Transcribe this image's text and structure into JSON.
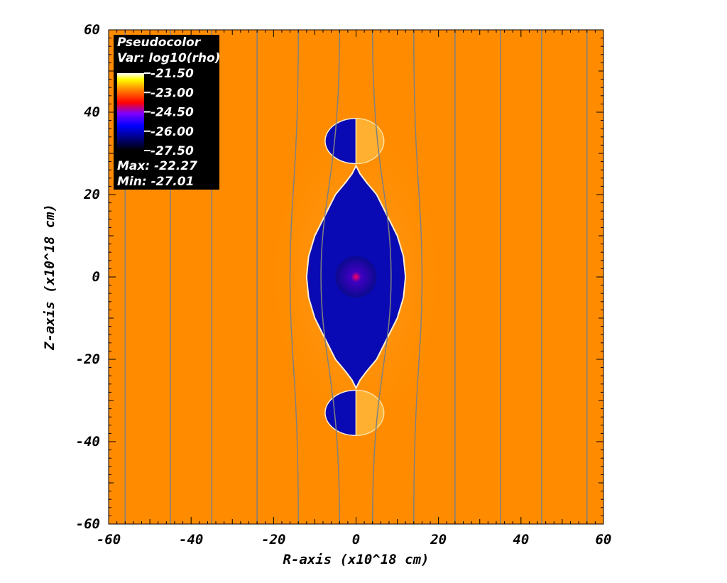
{
  "chart_data": {
    "type": "heatmap",
    "xlabel": "R-axis (x10^18 cm)",
    "ylabel": "Z-axis (x10^18 cm)",
    "xlim": [
      -60,
      60
    ],
    "ylim": [
      -60,
      60
    ],
    "x_ticks": [
      "-60",
      "-40",
      "-20",
      "0",
      "20",
      "40",
      "60"
    ],
    "y_ticks": [
      "-60",
      "-40",
      "-20",
      "0",
      "20",
      "40",
      "60"
    ],
    "grid": false,
    "legend": {
      "position": "top-left",
      "title": "Pseudocolor",
      "variable": "Var: log10(rho)",
      "levels": [
        "-21.50",
        "-23.00",
        "-24.50",
        "-26.00",
        "-27.50"
      ],
      "max_label": "Max: -22.27",
      "min_label": "Min: -27.01",
      "colormap": [
        "#ffffff",
        "#ffff00",
        "#ff8000",
        "#ff0000",
        "#8000ff",
        "#0000ff",
        "#000000"
      ]
    },
    "colors": {
      "ambient": "#ff8c00",
      "cavity": "#0a0ab4",
      "cavity_edge": "#fff0d0",
      "field_lines": "#808080"
    },
    "field_line_positions_r": [
      -56,
      -45,
      -35,
      -24,
      -14,
      -4,
      4,
      14,
      24,
      35,
      45,
      56
    ],
    "cavity_shape": {
      "r_half_width_at_z": [
        [
          0,
          12
        ],
        [
          5,
          11.5
        ],
        [
          10,
          10
        ],
        [
          15,
          7.5
        ],
        [
          20,
          5
        ],
        [
          23,
          2.5
        ],
        [
          25,
          1
        ]
      ],
      "lobes": [
        {
          "center_z": 33,
          "r_extent": 7.5,
          "z_extent": 5.5
        },
        {
          "center_z": -33,
          "r_extent": 7.5,
          "z_extent": 5.5
        }
      ]
    }
  }
}
